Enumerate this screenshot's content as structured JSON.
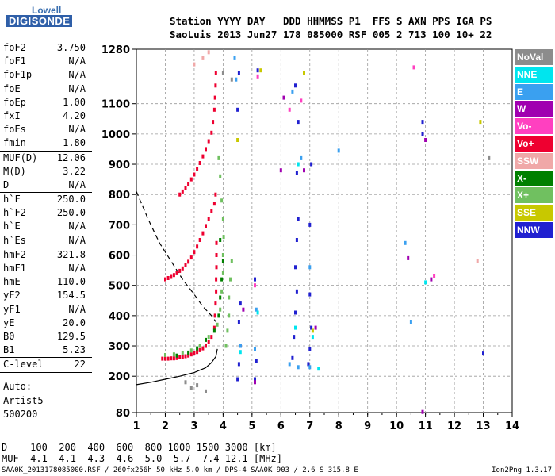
{
  "logo": {
    "line1": "Lowell",
    "line2": "DIGISONDE"
  },
  "header": {
    "line1": "Station YYYY DAY   DDD HHMMSS P1  FFS S AXN PPS IGA PS",
    "line2": "SaoLuis 2013 Jun27 178 085000 RSF 005 2 713 100 10+ 22"
  },
  "params": {
    "group1": [
      {
        "k": "foF2",
        "v": "3.750"
      },
      {
        "k": "foF1",
        "v": "N/A"
      },
      {
        "k": "foF1p",
        "v": "N/A"
      },
      {
        "k": "foE",
        "v": "N/A"
      },
      {
        "k": "foEp",
        "v": "1.00"
      },
      {
        "k": "fxI",
        "v": "4.20"
      },
      {
        "k": "foEs",
        "v": "N/A"
      },
      {
        "k": "fmin",
        "v": "1.80"
      }
    ],
    "group2": [
      {
        "k": "MUF(D)",
        "v": "12.06"
      },
      {
        "k": "M(D)",
        "v": "3.22"
      },
      {
        "k": "D",
        "v": "N/A"
      }
    ],
    "group3": [
      {
        "k": "h`F",
        "v": "250.0"
      },
      {
        "k": "h`F2",
        "v": "250.0"
      },
      {
        "k": "h`E",
        "v": "N/A"
      },
      {
        "k": "h`Es",
        "v": "N/A"
      }
    ],
    "group4": [
      {
        "k": "hmF2",
        "v": "321.8"
      },
      {
        "k": "hmF1",
        "v": "N/A"
      },
      {
        "k": "hmE",
        "v": "110.0"
      },
      {
        "k": "yF2",
        "v": "154.5"
      },
      {
        "k": "yF1",
        "v": "N/A"
      },
      {
        "k": "yE",
        "v": "20.0"
      },
      {
        "k": "B0",
        "v": "129.5"
      },
      {
        "k": "B1",
        "v": "5.23"
      }
    ],
    "group5": [
      {
        "k": "C-level",
        "v": "22"
      }
    ]
  },
  "auto": {
    "line1": "Auto:",
    "line2": "Artist5",
    "line3": "500200"
  },
  "legend": [
    {
      "label": "NoVal",
      "color": "#8c8c8c"
    },
    {
      "label": "NNE",
      "color": "#00e5ee"
    },
    {
      "label": "E",
      "color": "#3aa0f0"
    },
    {
      "label": "W",
      "color": "#a000b0"
    },
    {
      "label": "Vo-",
      "color": "#ff40c0"
    },
    {
      "label": "Vo+",
      "color": "#ee0030"
    },
    {
      "label": "SSW",
      "color": "#f0a8a8"
    },
    {
      "label": "X-",
      "color": "#008000"
    },
    {
      "label": "X+",
      "color": "#70c060"
    },
    {
      "label": "SSE",
      "color": "#c8c800"
    },
    {
      "label": "NNW",
      "color": "#2020d0"
    }
  ],
  "dmuf": {
    "dline": "D    100  200  400  600  800 1000 1500 3000 [km]",
    "mufline": "MUF  4.1  4.1  4.3  4.6  5.0  5.7  7.4 12.1 [MHz]"
  },
  "footer": {
    "left": "SAA0K_2013178085000.RSF / 260fx256h 50 kHz 5.0 km / DPS-4 SAA0K 903 / 2.6 S 315.8 E",
    "right": "Ion2Png 1.3.17"
  },
  "chart_data": {
    "type": "scatter",
    "xlim": [
      1,
      14
    ],
    "ylim": [
      80,
      1280
    ],
    "x_ticks": [
      1,
      2,
      3,
      4,
      5,
      6,
      7,
      8,
      9,
      10,
      11,
      12,
      13,
      14
    ],
    "y_ticks": [
      80,
      200,
      300,
      400,
      500,
      600,
      700,
      800,
      900,
      1000,
      1100,
      1280
    ],
    "grid": true,
    "dashed_profile": [
      [
        1.0,
        810
      ],
      [
        1.4,
        720
      ],
      [
        1.8,
        640
      ],
      [
        2.2,
        580
      ],
      [
        2.6,
        520
      ],
      [
        3.0,
        470
      ],
      [
        3.3,
        430
      ],
      [
        3.6,
        400
      ],
      [
        3.75,
        380
      ]
    ],
    "solid_profile": [
      [
        1.0,
        172
      ],
      [
        1.5,
        180
      ],
      [
        2.0,
        190
      ],
      [
        2.5,
        200
      ],
      [
        3.0,
        212
      ],
      [
        3.4,
        228
      ],
      [
        3.6,
        245
      ],
      [
        3.75,
        265
      ],
      [
        3.8,
        290
      ]
    ],
    "series": [
      {
        "name": "Vo+",
        "color": "#ee0030",
        "points": [
          [
            1.9,
            258
          ],
          [
            2.0,
            258
          ],
          [
            2.1,
            258
          ],
          [
            2.2,
            259
          ],
          [
            2.3,
            259
          ],
          [
            2.4,
            260
          ],
          [
            2.5,
            262
          ],
          [
            2.6,
            264
          ],
          [
            2.7,
            266
          ],
          [
            2.8,
            268
          ],
          [
            2.9,
            272
          ],
          [
            3.0,
            276
          ],
          [
            3.1,
            280
          ],
          [
            3.2,
            286
          ],
          [
            3.3,
            292
          ],
          [
            3.4,
            300
          ],
          [
            3.5,
            312
          ],
          [
            3.6,
            330
          ],
          [
            3.7,
            360
          ],
          [
            3.72,
            400
          ],
          [
            3.74,
            440
          ],
          [
            3.76,
            480
          ],
          [
            3.76,
            520
          ],
          [
            3.77,
            560
          ],
          [
            3.77,
            600
          ],
          [
            3.77,
            640
          ],
          [
            2.0,
            520
          ],
          [
            2.1,
            524
          ],
          [
            2.2,
            528
          ],
          [
            2.3,
            534
          ],
          [
            2.4,
            540
          ],
          [
            2.5,
            548
          ],
          [
            2.6,
            556
          ],
          [
            2.7,
            566
          ],
          [
            2.8,
            578
          ],
          [
            2.9,
            592
          ],
          [
            3.0,
            610
          ],
          [
            3.1,
            628
          ],
          [
            3.2,
            650
          ],
          [
            3.3,
            672
          ],
          [
            3.4,
            696
          ],
          [
            3.5,
            720
          ],
          [
            3.6,
            745
          ],
          [
            3.7,
            770
          ],
          [
            3.74,
            800
          ],
          [
            2.5,
            800
          ],
          [
            2.6,
            810
          ],
          [
            2.7,
            822
          ],
          [
            2.8,
            836
          ],
          [
            2.9,
            850
          ],
          [
            3.0,
            866
          ],
          [
            3.1,
            884
          ],
          [
            3.2,
            904
          ],
          [
            3.3,
            926
          ],
          [
            3.4,
            950
          ],
          [
            3.5,
            976
          ],
          [
            3.6,
            1004
          ],
          [
            3.65,
            1040
          ],
          [
            3.7,
            1080
          ],
          [
            3.72,
            1120
          ],
          [
            3.74,
            1160
          ],
          [
            3.75,
            1200
          ]
        ]
      },
      {
        "name": "X+",
        "color": "#70c060",
        "points": [
          [
            2.0,
            270
          ],
          [
            2.3,
            272
          ],
          [
            2.6,
            276
          ],
          [
            2.9,
            285
          ],
          [
            3.2,
            300
          ],
          [
            3.5,
            330
          ],
          [
            3.8,
            370
          ],
          [
            3.9,
            420
          ],
          [
            3.95,
            480
          ],
          [
            4.0,
            540
          ],
          [
            4.0,
            600
          ],
          [
            4.02,
            660
          ],
          [
            4.0,
            720
          ],
          [
            3.95,
            780
          ],
          [
            3.9,
            860
          ],
          [
            3.85,
            920
          ],
          [
            4.1,
            300
          ],
          [
            4.15,
            350
          ],
          [
            4.2,
            400
          ],
          [
            4.2,
            460
          ],
          [
            4.25,
            520
          ],
          [
            4.3,
            580
          ]
        ]
      },
      {
        "name": "X-",
        "color": "#008000",
        "points": [
          [
            2.4,
            268
          ],
          [
            2.8,
            278
          ],
          [
            3.1,
            292
          ],
          [
            3.4,
            320
          ],
          [
            3.7,
            350
          ],
          [
            3.85,
            400
          ],
          [
            3.9,
            460
          ],
          [
            3.95,
            520
          ],
          [
            4.0,
            580
          ],
          [
            3.9,
            650
          ]
        ]
      },
      {
        "name": "NNW",
        "color": "#2020d0",
        "points": [
          [
            4.5,
            190
          ],
          [
            4.55,
            240
          ],
          [
            4.6,
            300
          ],
          [
            4.55,
            380
          ],
          [
            4.6,
            440
          ],
          [
            4.5,
            1080
          ],
          [
            4.55,
            1200
          ],
          [
            5.1,
            190
          ],
          [
            5.15,
            250
          ],
          [
            5.1,
            520
          ],
          [
            5.2,
            1210
          ],
          [
            6.4,
            260
          ],
          [
            6.45,
            330
          ],
          [
            6.5,
            410
          ],
          [
            6.55,
            480
          ],
          [
            6.5,
            560
          ],
          [
            6.55,
            650
          ],
          [
            6.6,
            720
          ],
          [
            6.55,
            870
          ],
          [
            6.6,
            1040
          ],
          [
            6.5,
            1160
          ],
          [
            6.95,
            240
          ],
          [
            7.0,
            290
          ],
          [
            7.05,
            360
          ],
          [
            7.0,
            470
          ],
          [
            7.0,
            700
          ],
          [
            7.05,
            900
          ],
          [
            10.9,
            1000
          ],
          [
            10.9,
            1040
          ],
          [
            13.0,
            275
          ]
        ]
      },
      {
        "name": "E",
        "color": "#3aa0f0",
        "points": [
          [
            4.4,
            1250
          ],
          [
            4.45,
            1180
          ],
          [
            4.6,
            300
          ],
          [
            5.1,
            290
          ],
          [
            5.15,
            420
          ],
          [
            6.3,
            240
          ],
          [
            6.4,
            1140
          ],
          [
            6.6,
            230
          ],
          [
            6.7,
            920
          ],
          [
            7.0,
            560
          ],
          [
            7.0,
            230
          ],
          [
            8.0,
            945
          ],
          [
            10.3,
            640
          ],
          [
            10.5,
            380
          ]
        ]
      },
      {
        "name": "NNE",
        "color": "#00e5ee",
        "points": [
          [
            4.6,
            280
          ],
          [
            5.2,
            410
          ],
          [
            6.5,
            360
          ],
          [
            6.6,
            900
          ],
          [
            7.1,
            330
          ],
          [
            7.3,
            225
          ],
          [
            11.0,
            510
          ]
        ]
      },
      {
        "name": "W",
        "color": "#a000b0",
        "points": [
          [
            4.7,
            420
          ],
          [
            5.1,
            180
          ],
          [
            6.0,
            880
          ],
          [
            6.1,
            1120
          ],
          [
            6.8,
            880
          ],
          [
            7.2,
            360
          ],
          [
            10.4,
            590
          ],
          [
            10.9,
            82
          ],
          [
            11.2,
            520
          ],
          [
            11.0,
            980
          ]
        ]
      },
      {
        "name": "Vo-",
        "color": "#ff40c0",
        "points": [
          [
            5.1,
            500
          ],
          [
            5.2,
            1190
          ],
          [
            6.3,
            1080
          ],
          [
            6.7,
            1110
          ],
          [
            10.6,
            1220
          ],
          [
            11.3,
            530
          ]
        ]
      },
      {
        "name": "SSE",
        "color": "#c8c800",
        "points": [
          [
            4.5,
            980
          ],
          [
            5.3,
            1210
          ],
          [
            6.8,
            1200
          ],
          [
            7.1,
            350
          ],
          [
            12.9,
            1040
          ]
        ]
      },
      {
        "name": "SSW",
        "color": "#f0a8a8",
        "points": [
          [
            3.0,
            1230
          ],
          [
            3.3,
            1250
          ],
          [
            3.5,
            1270
          ],
          [
            12.8,
            580
          ]
        ]
      },
      {
        "name": "NoVal",
        "color": "#8c8c8c",
        "points": [
          [
            2.7,
            180
          ],
          [
            2.9,
            160
          ],
          [
            3.1,
            170
          ],
          [
            3.4,
            150
          ],
          [
            4.0,
            1200
          ],
          [
            4.3,
            1180
          ],
          [
            13.2,
            920
          ]
        ]
      }
    ]
  }
}
